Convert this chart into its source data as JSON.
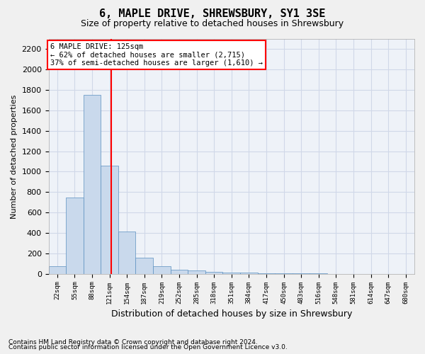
{
  "title": "6, MAPLE DRIVE, SHREWSBURY, SY1 3SE",
  "subtitle": "Size of property relative to detached houses in Shrewsbury",
  "xlabel": "Distribution of detached houses by size in Shrewsbury",
  "ylabel": "Number of detached properties",
  "bin_labels": [
    "22sqm",
    "55sqm",
    "88sqm",
    "121sqm",
    "154sqm",
    "187sqm",
    "219sqm",
    "252sqm",
    "285sqm",
    "318sqm",
    "351sqm",
    "384sqm",
    "417sqm",
    "450sqm",
    "483sqm",
    "516sqm",
    "548sqm",
    "581sqm",
    "614sqm",
    "647sqm",
    "680sqm"
  ],
  "bar_heights": [
    75,
    750,
    1750,
    1060,
    415,
    155,
    75,
    40,
    30,
    20,
    13,
    10,
    7,
    5,
    3,
    2,
    1,
    0,
    0,
    0,
    0
  ],
  "bar_color": "#c9d9ec",
  "bar_edge_color": "#5a8fc0",
  "property_line_x": 3.09,
  "annotation_line1": "6 MAPLE DRIVE: 125sqm",
  "annotation_line2": "← 62% of detached houses are smaller (2,715)",
  "annotation_line3": "37% of semi-detached houses are larger (1,610) →",
  "ylim": [
    0,
    2300
  ],
  "yticks": [
    0,
    200,
    400,
    600,
    800,
    1000,
    1200,
    1400,
    1600,
    1800,
    2000,
    2200
  ],
  "grid_color": "#d0d8e8",
  "plot_bg": "#eef2f8",
  "fig_bg": "#f0f0f0",
  "footnote1": "Contains HM Land Registry data © Crown copyright and database right 2024.",
  "footnote2": "Contains public sector information licensed under the Open Government Licence v3.0."
}
